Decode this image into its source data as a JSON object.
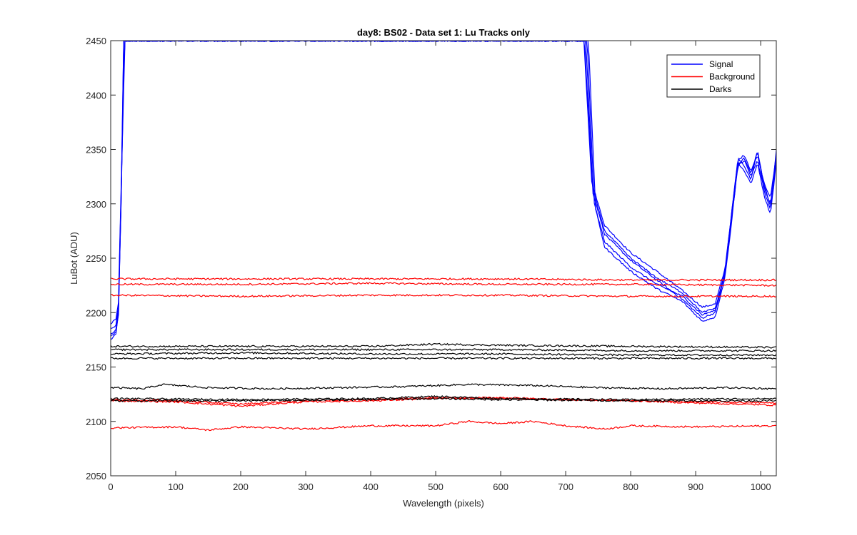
{
  "chart_data": {
    "type": "line",
    "title": "day8: BS02 - Data set 1: Lu Tracks only",
    "xlabel": "Wavelength (pixels)",
    "ylabel": "LuBot (ADU)",
    "xlim": [
      0,
      1024
    ],
    "ylim": [
      2050,
      2450
    ],
    "xticks": [
      0,
      100,
      200,
      300,
      400,
      500,
      600,
      700,
      800,
      900,
      1000
    ],
    "yticks": [
      2050,
      2100,
      2150,
      2200,
      2250,
      2300,
      2350,
      2400,
      2450
    ],
    "grid": false,
    "legend_location": "top-right",
    "colors": {
      "Signal": "#0000ff",
      "Background": "#ff0000",
      "Darks": "#000000"
    },
    "legend": [
      "Signal",
      "Background",
      "Darks"
    ],
    "series": [
      {
        "name": "Signal",
        "group": "Signal",
        "points": [
          [
            0,
            2175
          ],
          [
            8,
            2180
          ],
          [
            12,
            2200
          ],
          [
            16,
            2300
          ],
          [
            20,
            2450
          ],
          [
            728,
            2450
          ],
          [
            740,
            2320
          ],
          [
            760,
            2280
          ],
          [
            800,
            2255
          ],
          [
            840,
            2238
          ],
          [
            880,
            2220
          ],
          [
            910,
            2205
          ],
          [
            930,
            2208
          ],
          [
            945,
            2240
          ],
          [
            955,
            2290
          ],
          [
            965,
            2340
          ],
          [
            975,
            2345
          ],
          [
            985,
            2330
          ],
          [
            995,
            2345
          ],
          [
            1005,
            2320
          ],
          [
            1015,
            2305
          ],
          [
            1024,
            2345
          ]
        ]
      },
      {
        "name": "Signal",
        "group": "Signal",
        "points": [
          [
            0,
            2185
          ],
          [
            8,
            2188
          ],
          [
            12,
            2205
          ],
          [
            16,
            2310
          ],
          [
            21,
            2450
          ],
          [
            731,
            2450
          ],
          [
            742,
            2310
          ],
          [
            760,
            2272
          ],
          [
            800,
            2248
          ],
          [
            840,
            2230
          ],
          [
            880,
            2212
          ],
          [
            910,
            2195
          ],
          [
            930,
            2200
          ],
          [
            945,
            2235
          ],
          [
            955,
            2285
          ],
          [
            965,
            2335
          ],
          [
            975,
            2340
          ],
          [
            985,
            2325
          ],
          [
            995,
            2340
          ],
          [
            1005,
            2315
          ],
          [
            1015,
            2300
          ],
          [
            1024,
            2340
          ]
        ]
      },
      {
        "name": "Signal",
        "group": "Signal",
        "points": [
          [
            0,
            2180
          ],
          [
            8,
            2184
          ],
          [
            12,
            2202
          ],
          [
            16,
            2305
          ],
          [
            20,
            2450
          ],
          [
            733,
            2450
          ],
          [
            744,
            2300
          ],
          [
            760,
            2265
          ],
          [
            800,
            2242
          ],
          [
            840,
            2226
          ],
          [
            880,
            2215
          ],
          [
            910,
            2198
          ],
          [
            930,
            2202
          ],
          [
            945,
            2238
          ],
          [
            955,
            2290
          ],
          [
            965,
            2342
          ],
          [
            975,
            2335
          ],
          [
            985,
            2322
          ],
          [
            995,
            2350
          ],
          [
            1005,
            2312
          ],
          [
            1015,
            2295
          ],
          [
            1024,
            2350
          ]
        ]
      },
      {
        "name": "Signal",
        "group": "Signal",
        "points": [
          [
            0,
            2190
          ],
          [
            8,
            2194
          ],
          [
            12,
            2210
          ],
          [
            16,
            2315
          ],
          [
            22,
            2450
          ],
          [
            735,
            2450
          ],
          [
            746,
            2295
          ],
          [
            760,
            2260
          ],
          [
            800,
            2238
          ],
          [
            840,
            2222
          ],
          [
            880,
            2210
          ],
          [
            910,
            2192
          ],
          [
            930,
            2196
          ],
          [
            945,
            2232
          ],
          [
            955,
            2282
          ],
          [
            965,
            2338
          ],
          [
            975,
            2330
          ],
          [
            985,
            2318
          ],
          [
            995,
            2338
          ],
          [
            1005,
            2308
          ],
          [
            1015,
            2290
          ],
          [
            1024,
            2338
          ]
        ]
      },
      {
        "name": "Signal",
        "group": "Signal",
        "points": [
          [
            0,
            2178
          ],
          [
            8,
            2182
          ],
          [
            12,
            2198
          ],
          [
            16,
            2302
          ],
          [
            21,
            2450
          ],
          [
            729,
            2450
          ],
          [
            741,
            2315
          ],
          [
            760,
            2275
          ],
          [
            800,
            2250
          ],
          [
            840,
            2232
          ],
          [
            880,
            2218
          ],
          [
            910,
            2200
          ],
          [
            930,
            2204
          ],
          [
            945,
            2236
          ],
          [
            955,
            2288
          ],
          [
            965,
            2336
          ],
          [
            975,
            2342
          ],
          [
            985,
            2328
          ],
          [
            995,
            2348
          ],
          [
            1005,
            2318
          ],
          [
            1015,
            2298
          ],
          [
            1024,
            2342
          ]
        ]
      },
      {
        "name": "Background",
        "group": "Background",
        "points": [
          [
            0,
            2231
          ],
          [
            200,
            2231
          ],
          [
            400,
            2231
          ],
          [
            600,
            2231
          ],
          [
            800,
            2230
          ],
          [
            1024,
            2230
          ]
        ]
      },
      {
        "name": "Background",
        "group": "Background",
        "points": [
          [
            0,
            2226
          ],
          [
            200,
            2226
          ],
          [
            400,
            2227
          ],
          [
            600,
            2226
          ],
          [
            800,
            2226
          ],
          [
            1024,
            2225
          ]
        ]
      },
      {
        "name": "Background",
        "group": "Background",
        "points": [
          [
            0,
            2216
          ],
          [
            200,
            2215
          ],
          [
            400,
            2216
          ],
          [
            600,
            2216
          ],
          [
            800,
            2215
          ],
          [
            1024,
            2215
          ]
        ]
      },
      {
        "name": "Background",
        "group": "Background",
        "points": [
          [
            0,
            2120
          ],
          [
            100,
            2119
          ],
          [
            200,
            2116
          ],
          [
            300,
            2119
          ],
          [
            400,
            2120
          ],
          [
            500,
            2122
          ],
          [
            600,
            2121
          ],
          [
            700,
            2120
          ],
          [
            800,
            2119
          ],
          [
            900,
            2118
          ],
          [
            1024,
            2117
          ]
        ]
      },
      {
        "name": "Background",
        "group": "Background",
        "points": [
          [
            0,
            2119
          ],
          [
            100,
            2118
          ],
          [
            200,
            2114
          ],
          [
            300,
            2118
          ],
          [
            400,
            2119
          ],
          [
            500,
            2121
          ],
          [
            600,
            2122
          ],
          [
            700,
            2120
          ],
          [
            800,
            2119
          ],
          [
            900,
            2117
          ],
          [
            1024,
            2115
          ]
        ]
      },
      {
        "name": "Background",
        "group": "Background",
        "points": [
          [
            0,
            2094
          ],
          [
            100,
            2095
          ],
          [
            150,
            2092
          ],
          [
            200,
            2095
          ],
          [
            300,
            2093
          ],
          [
            400,
            2096
          ],
          [
            500,
            2096
          ],
          [
            550,
            2100
          ],
          [
            600,
            2098
          ],
          [
            650,
            2100
          ],
          [
            700,
            2096
          ],
          [
            760,
            2093
          ],
          [
            800,
            2096
          ],
          [
            900,
            2095
          ],
          [
            1024,
            2096
          ]
        ]
      },
      {
        "name": "Darks",
        "group": "Darks",
        "points": [
          [
            0,
            2169
          ],
          [
            200,
            2169
          ],
          [
            400,
            2169
          ],
          [
            500,
            2171
          ],
          [
            600,
            2170
          ],
          [
            800,
            2169
          ],
          [
            1024,
            2168
          ]
        ]
      },
      {
        "name": "Darks",
        "group": "Darks",
        "points": [
          [
            0,
            2166
          ],
          [
            200,
            2166
          ],
          [
            400,
            2166
          ],
          [
            600,
            2166
          ],
          [
            800,
            2165
          ],
          [
            1024,
            2165
          ]
        ]
      },
      {
        "name": "Darks",
        "group": "Darks",
        "points": [
          [
            0,
            2162
          ],
          [
            200,
            2163
          ],
          [
            400,
            2162
          ],
          [
            600,
            2162
          ],
          [
            800,
            2161
          ],
          [
            1024,
            2161
          ]
        ]
      },
      {
        "name": "Darks",
        "group": "Darks",
        "points": [
          [
            0,
            2158
          ],
          [
            200,
            2158
          ],
          [
            400,
            2158
          ],
          [
            600,
            2158
          ],
          [
            800,
            2158
          ],
          [
            1024,
            2158
          ]
        ]
      },
      {
        "name": "Darks",
        "group": "Darks",
        "points": [
          [
            0,
            2131
          ],
          [
            50,
            2130
          ],
          [
            80,
            2134
          ],
          [
            150,
            2131
          ],
          [
            250,
            2130
          ],
          [
            350,
            2131
          ],
          [
            450,
            2132
          ],
          [
            550,
            2134
          ],
          [
            650,
            2133
          ],
          [
            750,
            2131
          ],
          [
            850,
            2130
          ],
          [
            950,
            2131
          ],
          [
            1024,
            2130
          ]
        ]
      },
      {
        "name": "Darks",
        "group": "Darks",
        "points": [
          [
            0,
            2121
          ],
          [
            200,
            2120
          ],
          [
            400,
            2121
          ],
          [
            500,
            2123
          ],
          [
            600,
            2121
          ],
          [
            800,
            2120
          ],
          [
            1024,
            2121
          ]
        ]
      },
      {
        "name": "Darks",
        "group": "Darks",
        "points": [
          [
            0,
            2119
          ],
          [
            200,
            2119
          ],
          [
            400,
            2120
          ],
          [
            500,
            2121
          ],
          [
            600,
            2120
          ],
          [
            800,
            2119
          ],
          [
            1024,
            2119
          ]
        ]
      }
    ]
  }
}
